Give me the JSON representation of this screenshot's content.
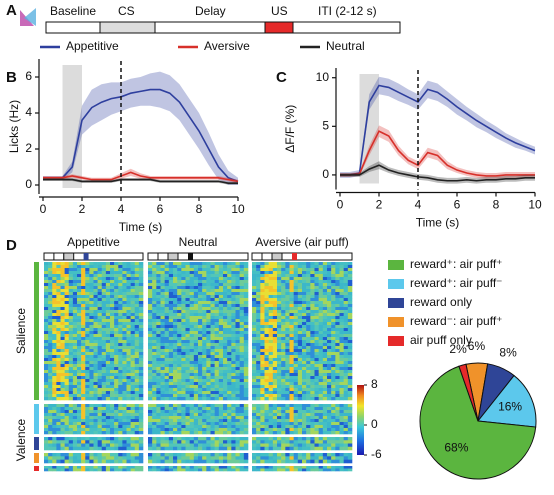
{
  "panel_labels": [
    "A",
    "B",
    "C",
    "D"
  ],
  "timeline": {
    "segments": [
      "Baseline",
      "CS",
      "Delay",
      "US",
      "ITI (2-12 s)"
    ]
  },
  "chart_data": [
    {
      "type": "line",
      "xlabel": "Time (s)",
      "ylabel": "Licks (Hz)",
      "xlim": [
        0,
        10
      ],
      "ylim": [
        -0.5,
        7
      ],
      "xticks": [
        0,
        2,
        4,
        6,
        8,
        10
      ],
      "yticks": [
        0,
        2,
        4,
        6
      ],
      "shaded_span": [
        1,
        2
      ],
      "vline": 4,
      "x": [
        0,
        0.5,
        1,
        1.5,
        2,
        2.5,
        3,
        3.5,
        4,
        4.5,
        5,
        5.5,
        6,
        6.5,
        7,
        7.5,
        8,
        8.5,
        9,
        9.5,
        10
      ],
      "series": [
        {
          "name": "Appetitive",
          "color": "#2e3f9e",
          "values": [
            0.4,
            0.4,
            0.4,
            1.0,
            3.6,
            4.3,
            4.6,
            4.8,
            4.9,
            5.1,
            5.2,
            5.3,
            5.3,
            5.1,
            4.6,
            3.8,
            3.0,
            2.0,
            1.0,
            0.4,
            0.2
          ],
          "sem": [
            0.1,
            0.1,
            0.1,
            0.3,
            0.8,
            1.0,
            1.0,
            0.9,
            0.8,
            0.8,
            0.8,
            0.9,
            1.0,
            1.0,
            1.0,
            1.0,
            1.0,
            0.9,
            0.7,
            0.4,
            0.2
          ]
        },
        {
          "name": "Aversive",
          "color": "#d7302a",
          "values": [
            0.4,
            0.4,
            0.4,
            0.5,
            0.4,
            0.3,
            0.3,
            0.3,
            0.5,
            0.7,
            0.5,
            0.4,
            0.4,
            0.4,
            0.4,
            0.4,
            0.4,
            0.4,
            0.4,
            0.3,
            0.2
          ],
          "sem": [
            0.1,
            0.1,
            0.1,
            0.1,
            0.1,
            0.1,
            0.1,
            0.1,
            0.15,
            0.2,
            0.15,
            0.1,
            0.1,
            0.1,
            0.1,
            0.1,
            0.1,
            0.1,
            0.1,
            0.1,
            0.1
          ]
        },
        {
          "name": "Neutral",
          "color": "#222222",
          "values": [
            0.3,
            0.3,
            0.3,
            0.3,
            0.2,
            0.2,
            0.2,
            0.2,
            0.3,
            0.3,
            0.3,
            0.3,
            0.2,
            0.2,
            0.2,
            0.2,
            0.2,
            0.2,
            0.2,
            0.1,
            0.1
          ],
          "sem": [
            0.08,
            0.08,
            0.08,
            0.08,
            0.08,
            0.08,
            0.08,
            0.08,
            0.08,
            0.08,
            0.08,
            0.08,
            0.08,
            0.08,
            0.08,
            0.08,
            0.08,
            0.08,
            0.08,
            0.08,
            0.08
          ]
        }
      ]
    },
    {
      "type": "line",
      "xlabel": "Time (s)",
      "ylabel": "ΔF/F (%)",
      "xlim": [
        0,
        10
      ],
      "ylim": [
        -1.5,
        11
      ],
      "xticks": [
        0,
        2,
        4,
        6,
        8,
        10
      ],
      "yticks": [
        0,
        5,
        10
      ],
      "shaded_span": [
        1,
        2
      ],
      "vline": 4,
      "x": [
        0,
        0.5,
        1,
        1.5,
        2,
        2.5,
        3,
        3.5,
        4,
        4.5,
        5,
        5.5,
        6,
        6.5,
        7,
        7.5,
        8,
        8.5,
        9,
        9.5,
        10
      ],
      "series": [
        {
          "color": "#2e3f9e",
          "values": [
            0,
            0,
            0.2,
            7.5,
            9.2,
            9.0,
            8.5,
            8.0,
            7.5,
            8.8,
            8.5,
            7.8,
            7.0,
            6.3,
            5.6,
            5.0,
            4.4,
            3.8,
            3.3,
            2.9,
            2.5
          ],
          "sem": [
            0.3,
            0.3,
            0.3,
            0.8,
            0.9,
            0.9,
            0.9,
            0.8,
            0.8,
            0.9,
            0.9,
            0.8,
            0.8,
            0.7,
            0.7,
            0.6,
            0.6,
            0.5,
            0.5,
            0.4,
            0.4
          ]
        },
        {
          "color": "#d7302a",
          "values": [
            0,
            0,
            0.1,
            2.5,
            4.5,
            4.0,
            2.5,
            1.5,
            1.0,
            2.3,
            2.0,
            1.0,
            0.5,
            0.2,
            0.0,
            -0.1,
            -0.1,
            0,
            0,
            0,
            0
          ],
          "sem": [
            0.2,
            0.2,
            0.2,
            0.5,
            0.6,
            0.6,
            0.5,
            0.4,
            0.4,
            0.5,
            0.5,
            0.4,
            0.3,
            0.3,
            0.3,
            0.3,
            0.3,
            0.3,
            0.3,
            0.3,
            0.3
          ]
        },
        {
          "color": "#222222",
          "values": [
            0,
            0,
            0,
            0.6,
            1.0,
            0.5,
            0.2,
            0,
            -0.2,
            -0.3,
            -0.5,
            -0.6,
            -0.6,
            -0.5,
            -0.6,
            -0.5,
            -0.5,
            -0.4,
            -0.4,
            -0.3,
            -0.3
          ],
          "sem": [
            0.2,
            0.2,
            0.2,
            0.3,
            0.4,
            0.3,
            0.3,
            0.3,
            0.3,
            0.3,
            0.3,
            0.3,
            0.3,
            0.3,
            0.3,
            0.3,
            0.3,
            0.3,
            0.3,
            0.3,
            0.3
          ]
        }
      ]
    },
    {
      "type": "heatmap",
      "columns": [
        "Appetitive",
        "Neutral",
        "Aversive (air puff)"
      ],
      "row_groups": [
        "Salience",
        "Valence"
      ],
      "clim": [
        -6,
        8
      ],
      "cticks": [
        8,
        0,
        -6
      ]
    },
    {
      "type": "pie",
      "categories": [
        "reward⁺: air puff⁺",
        "reward⁺: air puff⁻",
        "reward only",
        "reward⁻: air puff⁺",
        "air puff only"
      ],
      "values": [
        68,
        16,
        8,
        6,
        2
      ],
      "value_labels": [
        "68%",
        "16%",
        "8%",
        "6%",
        "2%"
      ],
      "colors": [
        "#5bb53f",
        "#5cc8ec",
        "#2f4597",
        "#f0922a",
        "#e52a2a"
      ]
    }
  ]
}
